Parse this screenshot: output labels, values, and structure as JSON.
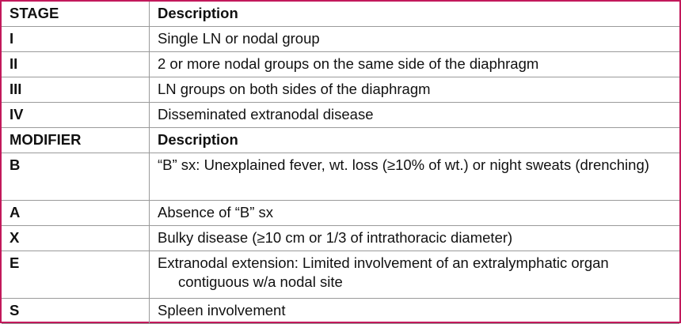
{
  "sections": [
    {
      "header": [
        "STAGE",
        "Description"
      ],
      "rows": [
        [
          "I",
          "Single LN or nodal group"
        ],
        [
          "II",
          "2 or more nodal groups on the same side of the diaphragm"
        ],
        [
          "III",
          "LN groups on both sides of the diaphragm"
        ],
        [
          "IV",
          "Disseminated extranodal disease"
        ]
      ]
    },
    {
      "header": [
        "MODIFIER",
        "Description"
      ],
      "rows": [
        [
          "B",
          "“B” sx: Unexplained fever, wt. loss (≥10% of wt.) or night sweats (drenching)"
        ],
        [
          "A",
          "Absence of “B” sx"
        ],
        [
          "X",
          "Bulky disease (≥10 cm or 1/3 of intrathoracic diameter)"
        ],
        [
          "E",
          "Extranodal extension: Limited involvement of an extralymphatic organ contiguous w/a nodal site"
        ],
        [
          "S",
          "Spleen involvement"
        ]
      ]
    }
  ]
}
